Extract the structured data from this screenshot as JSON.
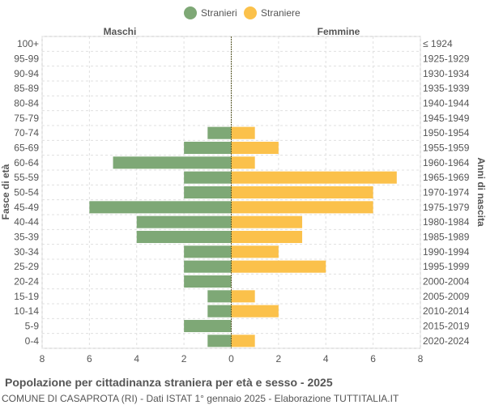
{
  "chart_data": {
    "type": "bar",
    "orientation": "horizontal-pyramid",
    "legend": [
      {
        "name": "Stranieri",
        "color": "#7ea876"
      },
      {
        "name": "Straniere",
        "color": "#fbc14b"
      }
    ],
    "legend_placement": "top-center",
    "left_header": "Maschi",
    "right_header": "Femmine",
    "ylabel_left": "Fasce di età",
    "ylabel_right": "Anni di nascita",
    "age_groups": [
      "100+",
      "95-99",
      "90-94",
      "85-89",
      "80-84",
      "75-79",
      "70-74",
      "65-69",
      "60-64",
      "55-59",
      "50-54",
      "45-49",
      "40-44",
      "35-39",
      "30-34",
      "25-29",
      "20-24",
      "15-19",
      "10-14",
      "5-9",
      "0-4"
    ],
    "birth_years": [
      "≤ 1924",
      "1925-1929",
      "1930-1934",
      "1935-1939",
      "1940-1944",
      "1945-1949",
      "1950-1954",
      "1955-1959",
      "1960-1964",
      "1965-1969",
      "1970-1974",
      "1975-1979",
      "1980-1984",
      "1985-1989",
      "1990-1994",
      "1995-1999",
      "2000-2004",
      "2005-2009",
      "2010-2014",
      "2015-2019",
      "2020-2024"
    ],
    "series": [
      {
        "name": "Stranieri",
        "values": [
          0,
          0,
          0,
          0,
          0,
          0,
          1,
          2,
          5,
          2,
          2,
          6,
          4,
          4,
          2,
          2,
          2,
          1,
          1,
          2,
          1
        ]
      },
      {
        "name": "Straniere",
        "values": [
          0,
          0,
          0,
          0,
          0,
          0,
          1,
          2,
          1,
          7,
          6,
          6,
          3,
          3,
          2,
          4,
          0,
          1,
          2,
          0,
          1
        ]
      }
    ],
    "x_ticks": [
      "8",
      "6",
      "4",
      "2",
      "0",
      "2",
      "4",
      "6",
      "8"
    ],
    "xlim": [
      -8,
      8
    ],
    "grid": true,
    "colors": {
      "male": "#7ea876",
      "female": "#fbc14b",
      "grid": "#e0e0e0",
      "center": "#5a5a2a"
    }
  },
  "footer": {
    "title": "Popolazione per cittadinanza straniera per età e sesso - 2025",
    "subtitle": "COMUNE DI CASAPROTA (RI) - Dati ISTAT 1° gennaio 2025 - Elaborazione TUTTITALIA.IT"
  }
}
